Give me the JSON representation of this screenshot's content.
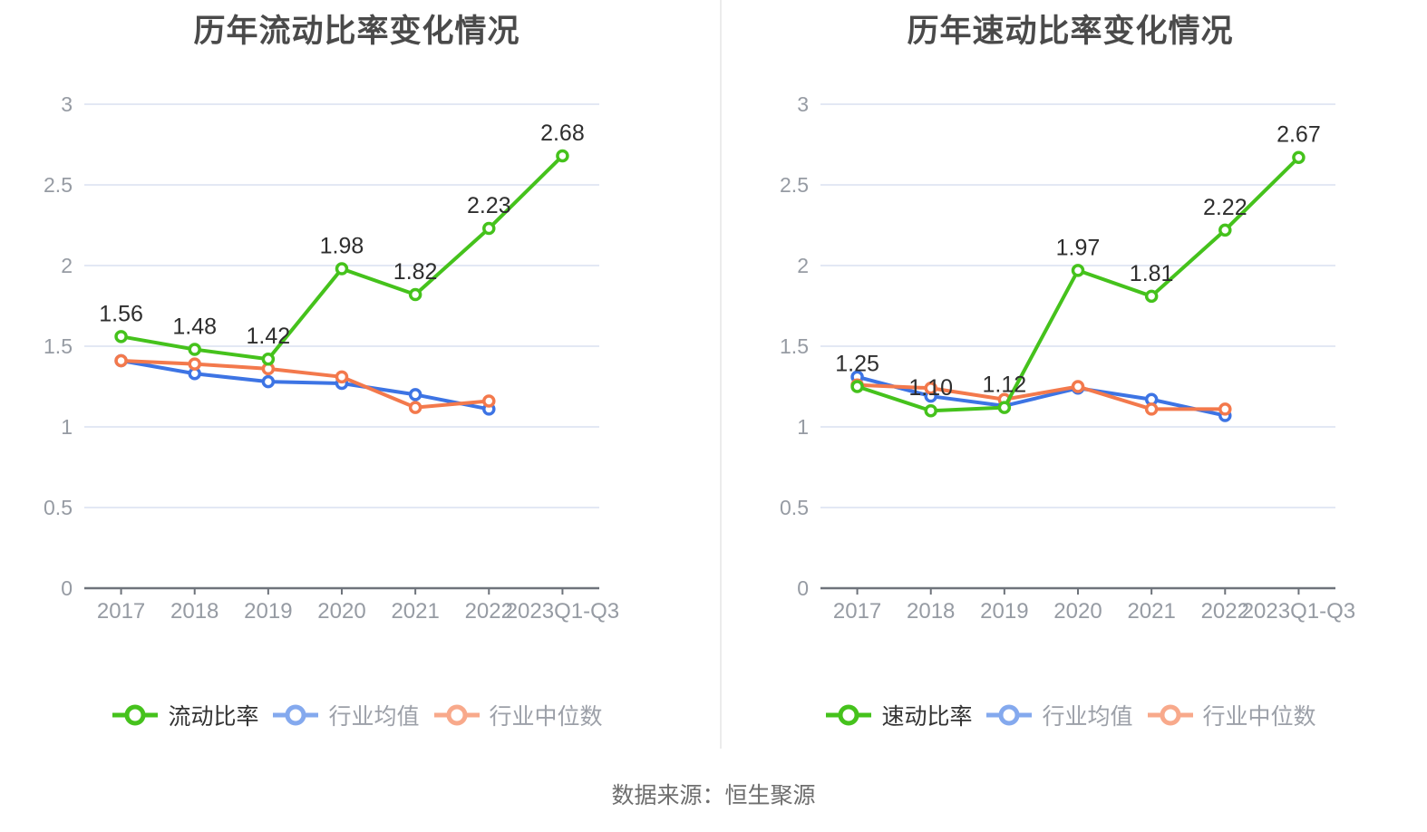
{
  "page": {
    "background": "#ffffff",
    "source_note": "数据来源：恒生聚源"
  },
  "colors": {
    "grid_line": "#e3e8f4",
    "axis_line": "#6e737b",
    "tick_label": "#969ba3",
    "title_text": "#4a4a4a",
    "data_label": "#2e2e2e",
    "legend_active_text": "#333333",
    "legend_inactive_text": "#9ca0a8",
    "source_text": "#6e6e6e",
    "divider": "#ececec",
    "series_green": "#45c21c",
    "series_blue": "#3d74e4",
    "series_orange": "#f3794c"
  },
  "chart_data": [
    {
      "type": "line",
      "title": "历年流动比率变化情况",
      "categories": [
        "2017",
        "2018",
        "2019",
        "2020",
        "2021",
        "2022",
        "2023Q1-Q3"
      ],
      "ylim": [
        0,
        3
      ],
      "yticks": [
        0,
        0.5,
        1,
        1.5,
        2,
        2.5,
        3
      ],
      "grid": "horizontal-only",
      "legend_position": "bottom",
      "series": [
        {
          "name": "流动比率",
          "color": "#45c21c",
          "legend_icon_color": "#45c21c",
          "values": [
            1.56,
            1.48,
            1.42,
            1.98,
            1.82,
            2.23,
            2.68
          ],
          "data_labels": [
            "1.56",
            "1.48",
            "1.42",
            "1.98",
            "1.82",
            "2.23",
            "2.68"
          ]
        },
        {
          "name": "行业均值",
          "color": "#3d74e4",
          "legend_icon_color": "#84a9ee",
          "values": [
            1.41,
            1.33,
            1.28,
            1.27,
            1.2,
            1.11
          ],
          "data_labels": []
        },
        {
          "name": "行业中位数",
          "color": "#f3794c",
          "legend_icon_color": "#f8a98b",
          "values": [
            1.41,
            1.39,
            1.36,
            1.31,
            1.12,
            1.16
          ],
          "data_labels": []
        }
      ]
    },
    {
      "type": "line",
      "title": "历年速动比率变化情况",
      "categories": [
        "2017",
        "2018",
        "2019",
        "2020",
        "2021",
        "2022",
        "2023Q1-Q3"
      ],
      "ylim": [
        0,
        3
      ],
      "yticks": [
        0,
        0.5,
        1,
        1.5,
        2,
        2.5,
        3
      ],
      "grid": "horizontal-only",
      "legend_position": "bottom",
      "series": [
        {
          "name": "速动比率",
          "color": "#45c21c",
          "legend_icon_color": "#45c21c",
          "values": [
            1.25,
            1.1,
            1.12,
            1.97,
            1.81,
            2.22,
            2.67
          ],
          "data_labels": [
            "1.25",
            "1.10",
            "1.12",
            "1.97",
            "1.81",
            "2.22",
            "2.67"
          ]
        },
        {
          "name": "行业均值",
          "color": "#3d74e4",
          "legend_icon_color": "#84a9ee",
          "values": [
            1.31,
            1.19,
            1.13,
            1.24,
            1.17,
            1.07
          ],
          "data_labels": []
        },
        {
          "name": "行业中位数",
          "color": "#f3794c",
          "legend_icon_color": "#f8a98b",
          "values": [
            1.26,
            1.24,
            1.17,
            1.25,
            1.11,
            1.11
          ],
          "data_labels": []
        }
      ]
    }
  ]
}
